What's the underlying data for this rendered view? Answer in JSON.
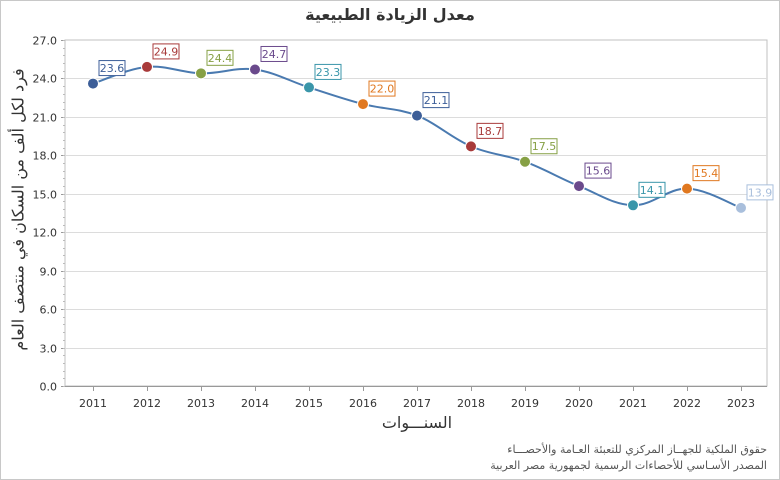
{
  "chart_data": {
    "type": "line",
    "title": "معدل الزيادة الطبيعية",
    "xlabel": "السنـــوات",
    "ylabel": "فرد لكل ألف من السكان في منتصف العام",
    "x": [
      "2011",
      "2012",
      "2013",
      "2014",
      "2015",
      "2016",
      "2017",
      "2018",
      "2019",
      "2020",
      "2021",
      "2022",
      "2023"
    ],
    "series": [
      {
        "values": [
          23.6,
          24.9,
          24.4,
          24.7,
          23.3,
          22.0,
          21.1,
          18.7,
          17.5,
          15.6,
          14.1,
          15.4,
          13.9
        ],
        "labels": [
          "23.6",
          "24.9",
          "24.4",
          "24.7",
          "23.3",
          "22.0",
          "21.1",
          "18.7",
          "17.5",
          "15.6",
          "14.1",
          "15.4",
          "13.9"
        ],
        "line_color": "#4a7ab0",
        "point_colors": [
          "#3c5e98",
          "#a83a3a",
          "#86a045",
          "#6a4a8c",
          "#3a96aa",
          "#e07820",
          "#3c5e98",
          "#a83a3a",
          "#86a045",
          "#6a4a8c",
          "#3a96aa",
          "#e07820",
          "#a9bfdc"
        ]
      }
    ],
    "ylim": [
      0,
      27
    ],
    "yticks": [
      "0.0",
      "3.0",
      "6.0",
      "9.0",
      "12.0",
      "15.0",
      "18.0",
      "21.0",
      "24.0",
      "27.0"
    ],
    "grid": true,
    "legend": "none"
  },
  "credits": {
    "line1": "حقوق الملكية للجهــاز المركزي للتعبئة العـامة والأحصـــاء",
    "line2": "المصدر الأسـاسي للأحصاءات الرسمية لجمهورية مصر العربية"
  }
}
